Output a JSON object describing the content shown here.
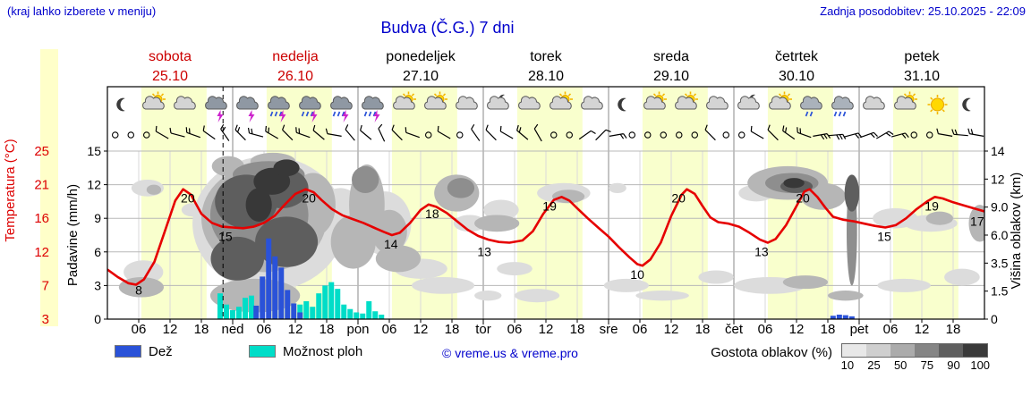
{
  "header": {
    "hint": "(kraj lahko izberete v meniju)",
    "title": "Budva (Č.G.) 7 dni",
    "updated": "Zadnja posodobitev: 25.10.2025 - 22:09"
  },
  "axes": {
    "temp_label": "Temperatura (°C)",
    "temp_ticks": [
      "25",
      "21",
      "16",
      "12",
      "7",
      "3"
    ],
    "precip_label": "Padavine (mm/h)",
    "precip_ticks": [
      "15",
      "12",
      "9",
      "6",
      "3",
      "0"
    ],
    "cloud_label": "Višina oblakov (km)",
    "cloud_ticks": [
      "14",
      "12",
      "9.0",
      "6.0",
      "3.5",
      "1.5",
      "0"
    ],
    "hour_ticks": [
      "06",
      "12",
      "18"
    ]
  },
  "days": [
    {
      "name": "sobota",
      "date": "25.10",
      "red": true,
      "abbr": ""
    },
    {
      "name": "nedelja",
      "date": "26.10",
      "red": true,
      "abbr": "ned"
    },
    {
      "name": "ponedeljek",
      "date": "27.10",
      "red": false,
      "abbr": "pon"
    },
    {
      "name": "torek",
      "date": "28.10",
      "red": false,
      "abbr": "tor"
    },
    {
      "name": "sreda",
      "date": "29.10",
      "red": false,
      "abbr": "sre"
    },
    {
      "name": "četrtek",
      "date": "30.10",
      "red": false,
      "abbr": "čet"
    },
    {
      "name": "petek",
      "date": "31.10",
      "red": false,
      "abbr": "pet"
    }
  ],
  "legend": {
    "rain": "Dež",
    "showers": "Možnost ploh",
    "credit": "© vreme.us & vreme.pro",
    "cloud_density": "Gostota oblakov (%)",
    "density_ticks": [
      "10",
      "25",
      "50",
      "75",
      "90",
      "100"
    ],
    "density_colors": [
      "#e8e8e8",
      "#cfcfcf",
      "#ababab",
      "#858585",
      "#5f5f5f",
      "#3a3a3a"
    ],
    "rain_color": "#2a52d8",
    "showers_color": "#00ddc8"
  },
  "chart_data": {
    "type": "line",
    "note": "7-day meteogram: temperature line, precipitation bars, cloud density shading, weather icons, wind symbols",
    "x_unit": "hours from 25.10 00:00",
    "x_range": [
      0,
      168
    ],
    "temp_axis_range": [
      3,
      25
    ],
    "precip_axis_range": [
      0,
      15
    ],
    "temp_color": "#e60000",
    "now_h": 22.15,
    "daylight": [
      6.5,
      19
    ],
    "temperature": [
      [
        0,
        9.5
      ],
      [
        2,
        8.5
      ],
      [
        4,
        7.7
      ],
      [
        5.5,
        7.5
      ],
      [
        7,
        8.2
      ],
      [
        9,
        10.5
      ],
      [
        11,
        14.5
      ],
      [
        13,
        18.5
      ],
      [
        14.5,
        20
      ],
      [
        16,
        19.3
      ],
      [
        18,
        16.8
      ],
      [
        20,
        15.6
      ],
      [
        22,
        15.1
      ],
      [
        24,
        15
      ],
      [
        26,
        14.9
      ],
      [
        28,
        15.1
      ],
      [
        30,
        15.6
      ],
      [
        32,
        16.5
      ],
      [
        34,
        18
      ],
      [
        36,
        19.4
      ],
      [
        38,
        20
      ],
      [
        39.5,
        19.6
      ],
      [
        41,
        18.6
      ],
      [
        43,
        17.4
      ],
      [
        45,
        16.6
      ],
      [
        47,
        16.1
      ],
      [
        49,
        15.6
      ],
      [
        51,
        15
      ],
      [
        53,
        14.4
      ],
      [
        54.5,
        14
      ],
      [
        56,
        14.3
      ],
      [
        58,
        15.6
      ],
      [
        60,
        17.3
      ],
      [
        61.5,
        18
      ],
      [
        63,
        17.7
      ],
      [
        65,
        16.9
      ],
      [
        67,
        15.8
      ],
      [
        69,
        14.7
      ],
      [
        71,
        13.9
      ],
      [
        73,
        13.4
      ],
      [
        75,
        13.1
      ],
      [
        77,
        13
      ],
      [
        79.5,
        13.3
      ],
      [
        81.5,
        14.5
      ],
      [
        83.5,
        16.8
      ],
      [
        85.5,
        18.6
      ],
      [
        87,
        19
      ],
      [
        88.5,
        18.5
      ],
      [
        90,
        17.5
      ],
      [
        92,
        16.2
      ],
      [
        94,
        15
      ],
      [
        96,
        13.8
      ],
      [
        98,
        12.4
      ],
      [
        100,
        11.1
      ],
      [
        101.5,
        10.2
      ],
      [
        102.5,
        10
      ],
      [
        104,
        10.8
      ],
      [
        106,
        13
      ],
      [
        108,
        16.5
      ],
      [
        110,
        19.3
      ],
      [
        111,
        20
      ],
      [
        112.5,
        19.4
      ],
      [
        114,
        17.8
      ],
      [
        115.5,
        16.3
      ],
      [
        117,
        15.7
      ],
      [
        119,
        15.5
      ],
      [
        121,
        15.1
      ],
      [
        123,
        14.3
      ],
      [
        125,
        13.4
      ],
      [
        126.5,
        13
      ],
      [
        128,
        13.5
      ],
      [
        130,
        15.3
      ],
      [
        132,
        17.8
      ],
      [
        133.5,
        19.7
      ],
      [
        134.5,
        20
      ],
      [
        136,
        19
      ],
      [
        137.5,
        17.6
      ],
      [
        139,
        16.4
      ],
      [
        141,
        16
      ],
      [
        143,
        15.8
      ],
      [
        145,
        15.5
      ],
      [
        147,
        15.2
      ],
      [
        149,
        15
      ],
      [
        151,
        15.3
      ],
      [
        153,
        16.2
      ],
      [
        155,
        17.4
      ],
      [
        157,
        18.4
      ],
      [
        158.5,
        19
      ],
      [
        160,
        18.8
      ],
      [
        162,
        18.3
      ],
      [
        164,
        17.9
      ],
      [
        166,
        17.5
      ],
      [
        168,
        17.1
      ]
    ],
    "temp_labels": [
      [
        6,
        8
      ],
      [
        15.4,
        20
      ],
      [
        22.6,
        15
      ],
      [
        38.6,
        20
      ],
      [
        54.3,
        14
      ],
      [
        62.2,
        18
      ],
      [
        72.2,
        13
      ],
      [
        84.7,
        19
      ],
      [
        101.5,
        10
      ],
      [
        109.4,
        20
      ],
      [
        125.3,
        13
      ],
      [
        133.2,
        20
      ],
      [
        148.8,
        15
      ],
      [
        157.9,
        19
      ],
      [
        166.6,
        17
      ]
    ],
    "rain_bars": [
      [
        28.5,
        1.2
      ],
      [
        29.7,
        3.8
      ],
      [
        30.9,
        7.2
      ],
      [
        32.1,
        5.6
      ],
      [
        33.3,
        4.6
      ],
      [
        34.5,
        2.6
      ],
      [
        35.7,
        1.4
      ],
      [
        36.9,
        0.6
      ],
      [
        139,
        0.3
      ],
      [
        140.2,
        0.4
      ],
      [
        141.4,
        0.35
      ],
      [
        142.6,
        0.25
      ]
    ],
    "shower_bars": [
      [
        21.6,
        2.3
      ],
      [
        22.8,
        1.3
      ],
      [
        24,
        0.8
      ],
      [
        25.2,
        1.1
      ],
      [
        26.4,
        1.9
      ],
      [
        27.6,
        2.1
      ],
      [
        36.9,
        1.3
      ],
      [
        38.1,
        1.6
      ],
      [
        39.3,
        1.1
      ],
      [
        40.5,
        2.3
      ],
      [
        41.7,
        3.0
      ],
      [
        42.9,
        3.3
      ],
      [
        44.1,
        2.7
      ],
      [
        45.3,
        1.3
      ],
      [
        46.5,
        0.9
      ],
      [
        47.7,
        0.6
      ],
      [
        48.9,
        0.5
      ],
      [
        50.1,
        1.6
      ],
      [
        51.3,
        0.7
      ],
      [
        52.5,
        0.4
      ]
    ],
    "icons": [
      "moon",
      "sun-cloud",
      "cloud",
      "cloud-lightning",
      "cloud-lightning",
      "cloud-rain-lightning",
      "cloud-rain-lightning",
      "cloud-rain-lightning",
      "cloud-rain-lightning",
      "sun-cloud",
      "sun-cloud",
      "cloud",
      "moon-cloud",
      "cloud",
      "sun-cloud",
      "cloud",
      "moon",
      "sun-cloud",
      "sun-cloud",
      "cloud",
      "moon-cloud",
      "sun-cloud",
      "cloud-drizzle",
      "cloud-rain",
      "cloud",
      "sun-cloud",
      "sun",
      "moon"
    ],
    "wind": [
      "o",
      "o",
      "o",
      "-60,1",
      "-75,1",
      "-70,2",
      "-55,1",
      "-35,2",
      "-45,2",
      "-75,2",
      "-60,2",
      "-45,1",
      "-70,2",
      "-50,1",
      "-80,1",
      "-40,1",
      "-50,1",
      "-25,1",
      "-45,1",
      "-70,1",
      "o",
      "-60,1",
      "o",
      "-35,1",
      "-45,1",
      "-60,1",
      "-50,2",
      "-30,1",
      "o",
      "o",
      "55,1",
      "45,1",
      "80,2",
      "o",
      "o",
      "o",
      "o",
      "o",
      "-45,1",
      "o",
      "o",
      "-60,1",
      "-45,1",
      "-55,2",
      "-70,2",
      "80,3",
      "85,3",
      "75,2",
      "70,2",
      "60,2",
      "75,2",
      "o",
      "o",
      "-80,1",
      "-85,2",
      "-80,2"
    ],
    "cloud_blobs": [
      [
        7.7,
        0.22,
        3.1,
        0.05,
        1
      ],
      [
        8.9,
        0.23,
        1.4,
        0.03,
        2
      ],
      [
        6.9,
        0.72,
        3.8,
        0.07,
        1
      ],
      [
        6.5,
        0.81,
        4.3,
        0.06,
        2
      ],
      [
        16.3,
        0.35,
        2.1,
        0.04,
        1
      ],
      [
        30.9,
        0.43,
        14.6,
        0.4,
        1
      ],
      [
        30.0,
        0.4,
        12.0,
        0.32,
        2
      ],
      [
        29.1,
        0.38,
        9.4,
        0.26,
        3
      ],
      [
        26.6,
        0.3,
        6.0,
        0.16,
        4
      ],
      [
        33.4,
        0.22,
        5.1,
        0.12,
        4
      ],
      [
        30.9,
        0.14,
        6.9,
        0.08,
        3
      ],
      [
        24.9,
        0.64,
        5.1,
        0.13,
        4
      ],
      [
        34.3,
        0.54,
        6.0,
        0.15,
        4
      ],
      [
        31.5,
        0.18,
        3.5,
        0.08,
        5
      ],
      [
        29.0,
        0.32,
        2.5,
        0.1,
        5
      ],
      [
        34.3,
        0.1,
        2.5,
        0.05,
        5
      ],
      [
        39.4,
        0.32,
        4.3,
        0.19,
        2
      ],
      [
        44.6,
        0.43,
        5.1,
        0.21,
        1
      ],
      [
        47.1,
        0.54,
        4.3,
        0.16,
        2
      ],
      [
        28.3,
        0.86,
        8.6,
        0.1,
        2
      ],
      [
        23.1,
        0.09,
        3.1,
        0.06,
        2
      ],
      [
        31.7,
        0.06,
        4.3,
        0.05,
        2
      ],
      [
        49.7,
        0.32,
        3.4,
        0.24,
        2
      ],
      [
        49.4,
        0.17,
        2.6,
        0.08,
        3
      ],
      [
        53.1,
        0.43,
        5.1,
        0.19,
        1
      ],
      [
        54.0,
        0.48,
        3.4,
        0.13,
        2
      ],
      [
        55.7,
        0.64,
        4.3,
        0.08,
        2
      ],
      [
        60.0,
        0.7,
        5.1,
        0.06,
        1
      ],
      [
        66.9,
        0.25,
        4.3,
        0.11,
        2
      ],
      [
        67.7,
        0.22,
        2.6,
        0.06,
        3
      ],
      [
        69.4,
        0.43,
        3.1,
        0.05,
        1
      ],
      [
        64.3,
        0.8,
        6.0,
        0.05,
        1
      ],
      [
        72.9,
        0.86,
        2.6,
        0.03,
        1
      ],
      [
        75.4,
        0.35,
        3.4,
        0.06,
        1
      ],
      [
        74.6,
        0.43,
        4.3,
        0.05,
        2
      ],
      [
        78.0,
        0.7,
        3.4,
        0.04,
        1
      ],
      [
        87.4,
        0.25,
        5.1,
        0.06,
        1
      ],
      [
        88.3,
        0.27,
        3.1,
        0.04,
        2
      ],
      [
        82.3,
        0.86,
        4.3,
        0.04,
        1
      ],
      [
        97.7,
        0.22,
        1.7,
        0.03,
        1
      ],
      [
        99.4,
        0.8,
        4.3,
        0.04,
        1
      ],
      [
        106.3,
        0.86,
        5.1,
        0.03,
        1
      ],
      [
        116.6,
        0.75,
        3.4,
        0.04,
        1
      ],
      [
        124.3,
        0.25,
        3.4,
        0.05,
        1
      ],
      [
        130.3,
        0.19,
        7.7,
        0.1,
        2
      ],
      [
        131.1,
        0.19,
        5.1,
        0.06,
        3
      ],
      [
        132.0,
        0.21,
        3.1,
        0.04,
        4
      ],
      [
        131.5,
        0.19,
        2.0,
        0.03,
        5
      ],
      [
        137.1,
        0.27,
        4.3,
        0.08,
        2
      ],
      [
        142.6,
        0.48,
        1.0,
        0.32,
        3
      ],
      [
        142.6,
        0.25,
        1.4,
        0.11,
        4
      ],
      [
        126.9,
        0.8,
        6.9,
        0.05,
        1
      ],
      [
        133.7,
        0.78,
        4.3,
        0.04,
        2
      ],
      [
        141.4,
        0.86,
        3.4,
        0.03,
        2
      ],
      [
        150.9,
        0.4,
        4.3,
        0.06,
        1
      ],
      [
        157.7,
        0.43,
        5.1,
        0.05,
        1
      ],
      [
        159.4,
        0.4,
        2.6,
        0.04,
        2
      ],
      [
        152.6,
        0.8,
        5.1,
        0.04,
        1
      ],
      [
        163.7,
        0.75,
        3.4,
        0.05,
        1
      ],
      [
        167.1,
        0.43,
        2.1,
        0.11,
        2
      ]
    ]
  }
}
